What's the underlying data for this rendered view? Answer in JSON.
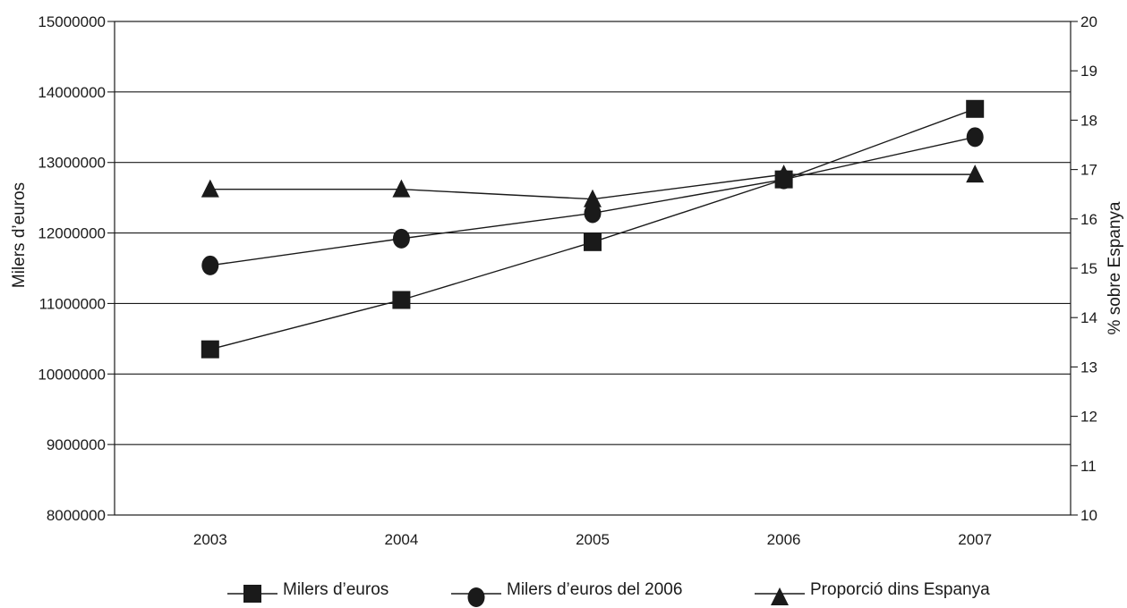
{
  "chart_data": {
    "type": "line",
    "x": [
      "2003",
      "2004",
      "2005",
      "2006",
      "2007"
    ],
    "ylabel": "Milers d’euros",
    "y2label": "% sobre Espanya",
    "ylim": [
      8000000,
      15000000
    ],
    "y2lim": [
      10,
      20
    ],
    "yticks": [
      "8000000",
      "9000000",
      "10000000",
      "11000000",
      "12000000",
      "13000000",
      "14000000",
      "15000000"
    ],
    "y2ticks": [
      "10",
      "11",
      "12",
      "13",
      "14",
      "15",
      "16",
      "17",
      "18",
      "19",
      "20"
    ],
    "grid": true,
    "legend_position": "bottom",
    "series": [
      {
        "name": "Milers d’euros",
        "axis": "left",
        "marker": "square",
        "values": [
          10350000,
          11050000,
          11870000,
          12760000,
          13760000
        ]
      },
      {
        "name": "Milers d’euros del 2006",
        "axis": "left",
        "marker": "circle",
        "values": [
          11540000,
          11920000,
          12280000,
          12760000,
          13360000
        ]
      },
      {
        "name": "Proporció dins Espanya",
        "axis": "right",
        "marker": "triangle",
        "values": [
          16.6,
          16.6,
          16.4,
          16.9,
          16.9
        ]
      }
    ],
    "colors": {
      "line": "#1a1a1a",
      "marker": "#1a1a1a",
      "grid": "#1a1a1a"
    }
  }
}
